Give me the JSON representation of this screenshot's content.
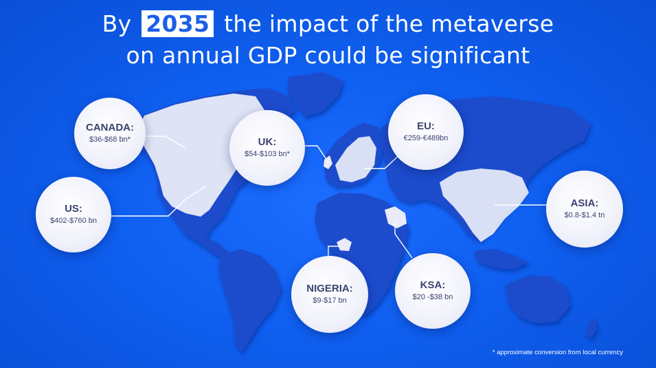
{
  "title": {
    "prefix": "By",
    "year": "2035",
    "line1_rest": "the impact of the metaverse",
    "line2": "on annual GDP could be significant"
  },
  "regions": {
    "canada": {
      "name": "CANADA:",
      "value": "$36-$68 bn*"
    },
    "us": {
      "name": "US:",
      "value": "$402-$760 bn"
    },
    "uk": {
      "name": "UK:",
      "value": "$54-$103 bn*"
    },
    "eu": {
      "name": "EU:",
      "value": "€259-€489bn"
    },
    "asia": {
      "name": "ASIA:",
      "value": "$0.8-$1.4 tn"
    },
    "nigeria": {
      "name": "NIGERIA:",
      "value": "$9-$17 bn"
    },
    "ksa": {
      "name": "KSA:",
      "value": "$20 -$38 bn"
    }
  },
  "footnote": "* approximate conversion from local currency",
  "colors": {
    "background": "#0f5ff0",
    "continents": "#1a49c9",
    "highlight": "#e9ebf8",
    "bubble_text": "#3b4270"
  }
}
